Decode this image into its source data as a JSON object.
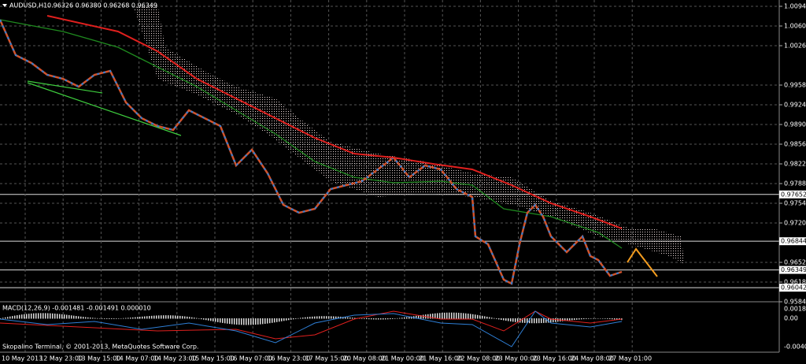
{
  "header": {
    "symbol": "AUDUSD,H1",
    "ohlc": "0.96326 0.96380 0.96268 0.96349"
  },
  "price_axis": [
    "1.00940",
    "1.00600",
    "1.00260",
    "0.99580",
    "0.99240",
    "0.98900",
    "0.98560",
    "0.98220",
    "0.97880",
    "0.97540",
    "0.97200",
    "0.96520",
    "0.96180",
    "0.95840"
  ],
  "level_labels": [
    "0.97652",
    "0.96844",
    "0.96349",
    "0.96042"
  ],
  "time_axis": [
    "10 May 2013",
    "12 May 23:00",
    "13 May 15:00",
    "14 May 07:00",
    "14 May 23:00",
    "15 May 15:00",
    "16 May 07:00",
    "16 May 23:00",
    "17 May 15:00",
    "20 May 08:00",
    "21 May 00:00",
    "21 May 16:00",
    "22 May 08:00",
    "23 May 00:00",
    "23 May 16:00",
    "24 May 08:00",
    "27 May 01:00"
  ],
  "macd": {
    "title": "MACD(12,26,9) -0.001481 -0.001491 0.000010",
    "axis": [
      "0.001866",
      "0.00",
      "-0.004006"
    ]
  },
  "footer": "Skopalino Terminal, © 2001-2013, MetaQuotes Software Corp."
}
